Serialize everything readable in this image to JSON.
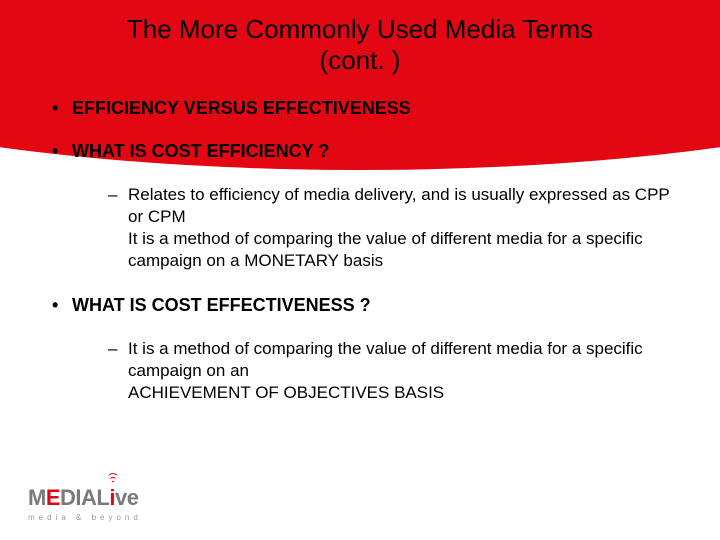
{
  "colors": {
    "brand_red": "#e30613",
    "text": "#000000",
    "logo_gray": "#7a7a7a",
    "tagline_gray": "#9a9a9a",
    "background": "#ffffff"
  },
  "typography": {
    "title_fontsize": 26,
    "bullet1_fontsize": 18,
    "bullet2_fontsize": 17,
    "tagline_fontsize": 8
  },
  "title": {
    "line1": "The More Commonly Used Media Terms",
    "line2": "(cont. )"
  },
  "bullets": {
    "b1": "EFFICIENCY VERSUS EFFECTIVENESS",
    "b2": "WHAT IS COST EFFICIENCY ?",
    "b2_sub": "Relates to efficiency of media delivery, and is usually expressed as CPP or CPM\nIt is a method of comparing the value of different media for a specific campaign on a MONETARY basis",
    "b3": "WHAT IS COST EFFECTIVENESS ?",
    "b3_sub": "It is a method of comparing the value of different media for a specific campaign on an\nACHIEVEMENT OF OBJECTIVES BASIS"
  },
  "logo": {
    "part_m": "M",
    "part_e": "E",
    "part_d": "D",
    "part_i": "I",
    "part_a": "A",
    "part_l": "L",
    "part_i2": "i",
    "part_ve": "ve",
    "tagline": "media & beyond"
  }
}
